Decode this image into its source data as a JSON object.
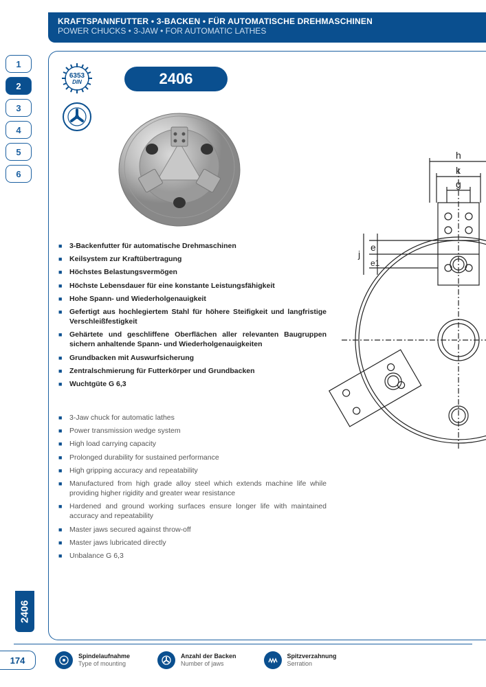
{
  "colors": {
    "brand": "#0a4f8f",
    "brand_border": "#1a5fa0",
    "text_dark": "#222222",
    "text_muted": "#666666"
  },
  "header": {
    "de": "KRAFTSPANNFUTTER • 3-BACKEN • FÜR AUTOMATISCHE DREHMASCHINEN",
    "en": "POWER CHUCKS • 3-JAW • FOR AUTOMATIC LATHES"
  },
  "tabs": [
    "1",
    "2",
    "3",
    "4",
    "5",
    "6"
  ],
  "active_tab_index": 1,
  "din_badge": {
    "number": "6353",
    "label": "DIN"
  },
  "product_code": "2406",
  "features_de": [
    "3-Backenfutter für automatische Drehmaschinen",
    "Keilsystem zur Kraftübertragung",
    "Höchstes Belastungsvermögen",
    "Höchste Lebensdauer für eine konstante Leistungsfähigkeit",
    "Hohe Spann- und Wiederholgenauigkeit",
    "Gefertigt aus hochlegiertem Stahl für höhere Steifigkeit und langfristige Verschleißfestigkeit",
    "Gehärtete und geschliffene Oberflächen aller relevanten Baugruppen sichern anhaltende Spann- und Wiederholgenauigkeiten",
    "Grundbacken mit Auswurfsicherung",
    "Zentralschmierung für Futterkörper und Grundbacken",
    "Wuchtgüte G 6,3"
  ],
  "features_en": [
    "3-Jaw chuck for automatic lathes",
    "Power transmission wedge system",
    "High load carrying capacity",
    "Prolonged durability for sustained performance",
    "High gripping accuracy and repeatability",
    "Manufactured from high grade alloy steel which extends machine life while providing higher rigidity and greater wear resistance",
    "Hardened and ground working surfaces ensure longer life with maintained accuracy and repeatability",
    "Master jaws secured against throw-off",
    "Master jaws lubricated directly",
    "Unbalance G 6,3"
  ],
  "drawing_labels": [
    "h",
    "k",
    "g",
    "j",
    "e",
    "e1",
    "d1"
  ],
  "side_code": "2406",
  "page_number": "174",
  "footer_items": [
    {
      "de": "Spindelaufnahme",
      "en": "Type of mounting"
    },
    {
      "de": "Anzahl der Backen",
      "en": "Number of jaws"
    },
    {
      "de": "Spitzverzahnung",
      "en": "Serration"
    }
  ]
}
